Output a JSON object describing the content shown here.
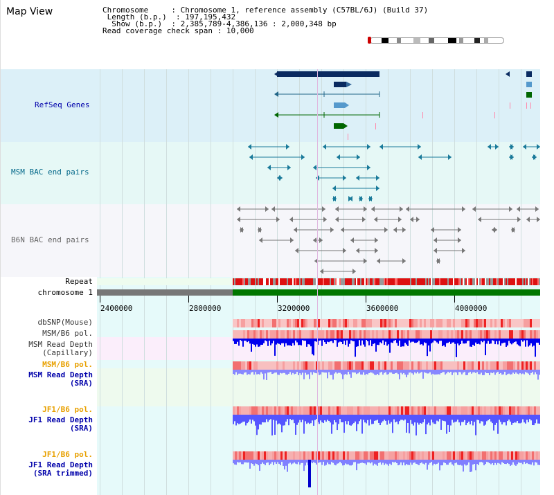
{
  "page_title": "Map View",
  "info": {
    "chromosome_label": "Chromosome",
    "chromosome_value": "Chromosome 1, reference assembly (C57BL/6J) (Build 37)",
    "length_label": "Length (b.p.)",
    "length_value": "197,195,432",
    "show_label": "Show (b.p.)",
    "show_value": "2,385,789-4,386,136 : 2,000,348 bp",
    "coverage_label": "Read coverage check span",
    "coverage_value": "10,000"
  },
  "tracks": {
    "refseq": "RefSeq Genes",
    "msm_bac": "MSM BAC end pairs",
    "b6n_bac": "B6N BAC end pairs",
    "repeat": "Repeat",
    "chromosome": "chromosome 1",
    "dbsnp": "dbSNP(Mouse)",
    "msm_b6_pol_1": "MSM/B6 pol.",
    "msm_read_depth_cap_1": "MSM Read Depth",
    "msm_read_depth_cap_2": "(Capillary)",
    "msm_b6_pol_2": "MSM/B6 pol.",
    "msm_read_depth_sra_1": "MSM Read Depth",
    "msm_read_depth_sra_2": "(SRA)",
    "jf1_b6_pol_1": "JF1/B6 pol.",
    "jf1_read_depth_sra_1": "JF1 Read Depth",
    "jf1_read_depth_sra_2": "(SRA)",
    "jf1_b6_pol_2": "JF1/B6 pol.",
    "jf1_read_depth_trim_1": "JF1 Read Depth",
    "jf1_read_depth_trim_2": "(SRA trimmed)"
  },
  "axis": {
    "ticks": [
      "2400000",
      "2800000",
      "3200000",
      "3600000",
      "4000000"
    ]
  },
  "colors": {
    "label_blue": "#0000aa",
    "label_teal": "#006688",
    "label_gray": "#666666",
    "label_orange": "#e8a000",
    "band_refseq": "#dcf0f8",
    "band_msm": "#e6f8f6",
    "band_b6n": "#f2f2f8",
    "band_lower": "#e6fafa",
    "band_cap": "#fbeefb",
    "band_sra": "#eefaee",
    "depth_blue": "#0000ee",
    "pol_red": "#ee3333",
    "repeat_red": "#dd1111",
    "chrom_green": "#007700",
    "chrom_gray": "#777777"
  }
}
